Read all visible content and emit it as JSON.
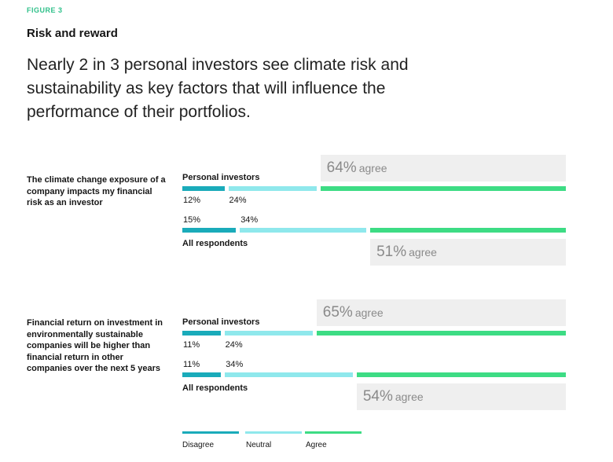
{
  "figure_label": "FIGURE 3",
  "title": "Risk and reward",
  "headline": "Nearly 2 in 3 personal investors see climate risk and sustainability as key factors that will influence the performance of their portfolios.",
  "colors": {
    "disagree": "#1aabba",
    "neutral": "#8fe8ec",
    "agree": "#3ddc84",
    "agree_box": "#efefef"
  },
  "agree_word": "agree",
  "chart_data": {
    "type": "bar",
    "orientation": "horizontal-stacked",
    "questions": [
      {
        "label": "The climate change exposure of a company impacts my financial risk as an investor",
        "groups": [
          {
            "name": "Personal investors",
            "disagree": 12,
            "neutral": 24,
            "agree": 64,
            "disagree_label": "12%",
            "neutral_label": "24%",
            "agree_label": "64%"
          },
          {
            "name": "All respondents",
            "disagree": 15,
            "neutral": 34,
            "agree": 51,
            "disagree_label": "15%",
            "neutral_label": "34%",
            "agree_label": "51%"
          }
        ]
      },
      {
        "label": "Financial return on investment in environmentally sustainable companies will be higher than financial return in other companies over the next 5 years",
        "groups": [
          {
            "name": "Personal investors",
            "disagree": 11,
            "neutral": 24,
            "agree": 65,
            "disagree_label": "11%",
            "neutral_label": "24%",
            "agree_label": "65%"
          },
          {
            "name": "All respondents",
            "disagree": 11,
            "neutral": 34,
            "agree": 54,
            "disagree_label": "11%",
            "neutral_label": "34%",
            "agree_label": "54%"
          }
        ]
      }
    ],
    "legend": [
      "Disagree",
      "Neutral",
      "Agree"
    ],
    "legend_position": "bottom"
  }
}
